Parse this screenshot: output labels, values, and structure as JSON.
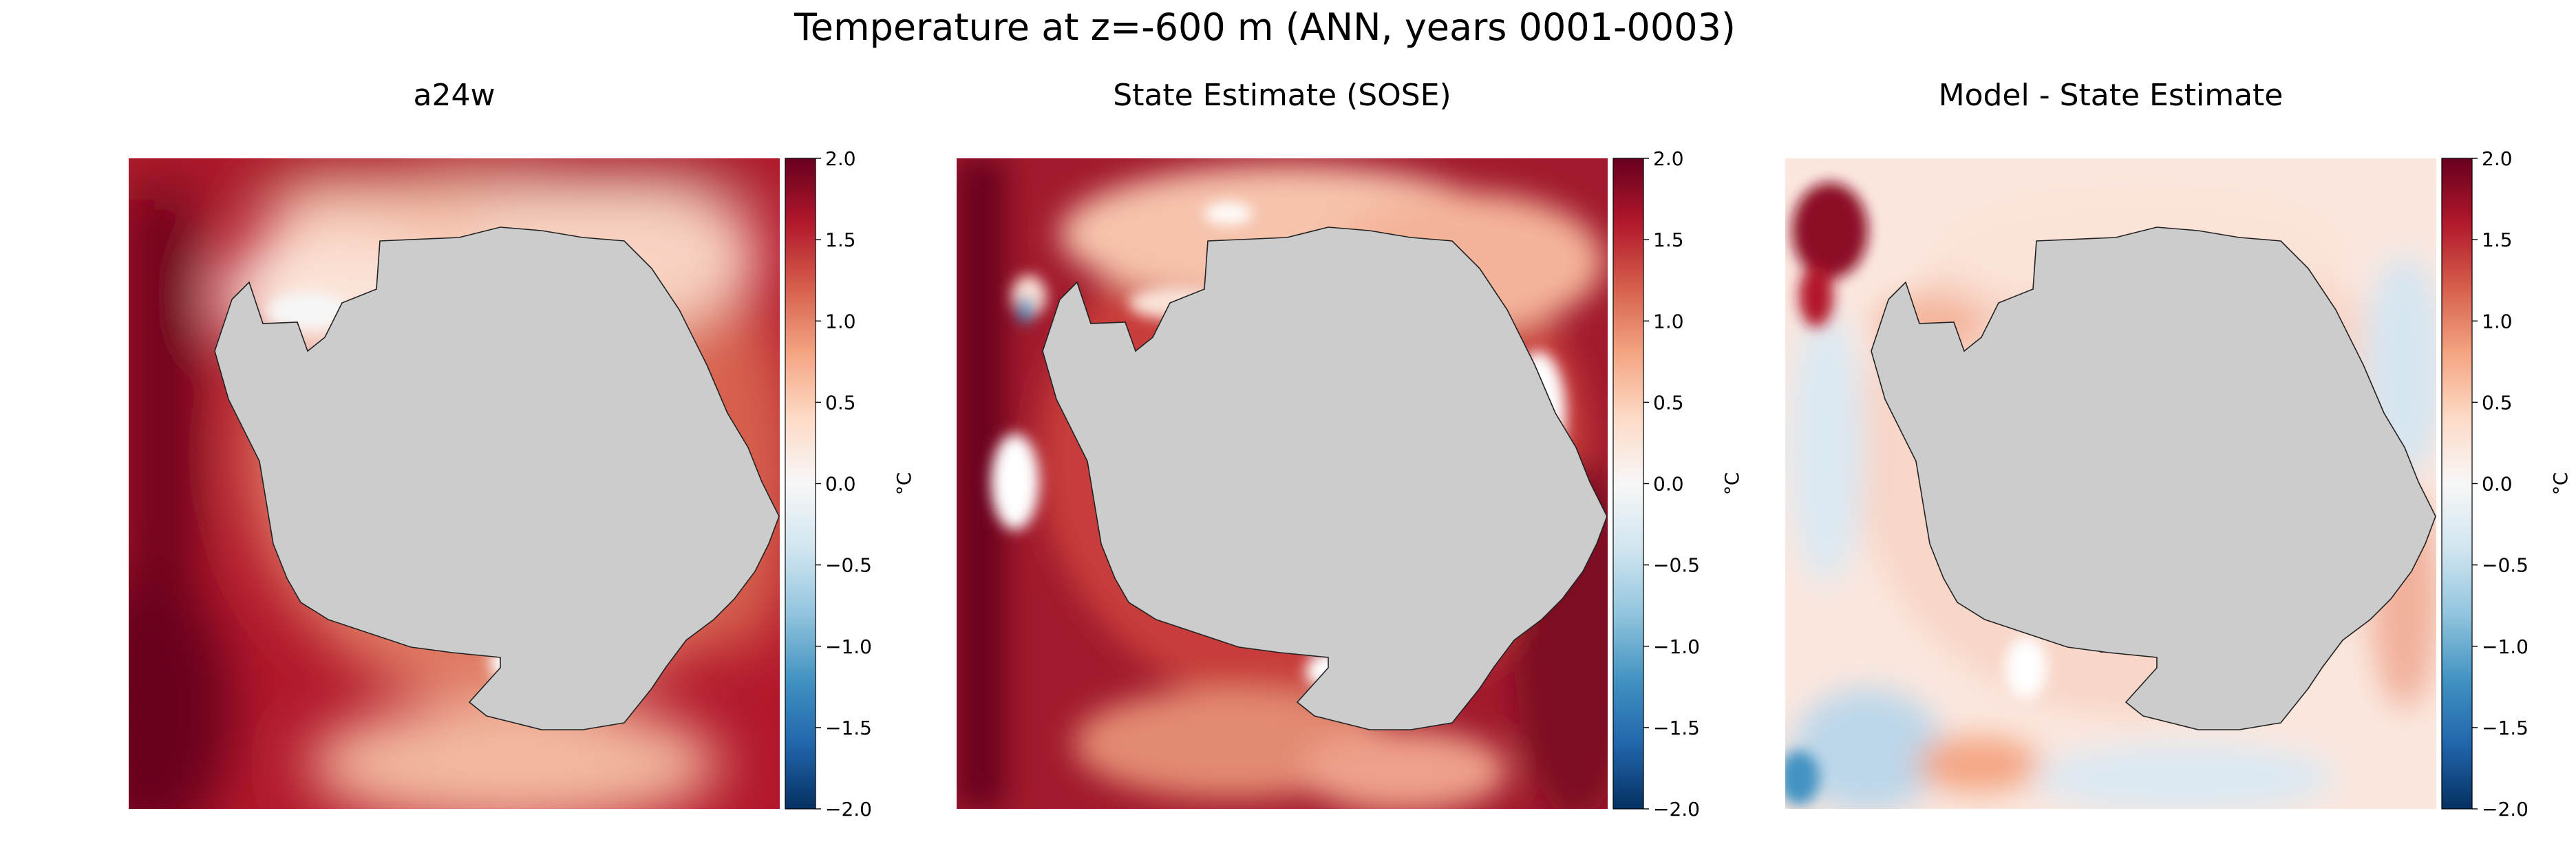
{
  "chart_data": {
    "type": "heatmap",
    "title": "Temperature at z=-600 m (ANN, years 0001-0003)",
    "panels": [
      {
        "title": "a24w",
        "colorbar": {
          "label": "°C",
          "range": [
            -2.0,
            2.0
          ],
          "ticks": [
            "2.0",
            "1.5",
            "1.0",
            "0.5",
            "0.0",
            "−0.5",
            "−1.0",
            "−1.5",
            "−2.0"
          ]
        },
        "pattern": "model"
      },
      {
        "title": "State Estimate (SOSE)",
        "colorbar": {
          "label": "°C",
          "range": [
            -2.0,
            2.0
          ],
          "ticks": [
            "2.0",
            "1.5",
            "1.0",
            "0.5",
            "0.0",
            "−0.5",
            "−1.0",
            "−1.5",
            "−2.0"
          ]
        },
        "pattern": "sose"
      },
      {
        "title": "Model - State Estimate",
        "colorbar": {
          "label": "°C",
          "range": [
            -2.0,
            2.0
          ],
          "ticks": [
            "2.0",
            "1.5",
            "1.0",
            "0.5",
            "0.0",
            "−0.5",
            "−1.0",
            "−1.5",
            "−2.0"
          ]
        },
        "pattern": "diff"
      }
    ],
    "colormap": "RdBu_r",
    "land_color": "#cccccc",
    "colormap_stops": [
      "#053061",
      "#2166ac",
      "#4393c3",
      "#92c5de",
      "#d1e5f0",
      "#f7f7f7",
      "#fddbc7",
      "#f4a582",
      "#d6604d",
      "#b2182b",
      "#67001f"
    ]
  }
}
